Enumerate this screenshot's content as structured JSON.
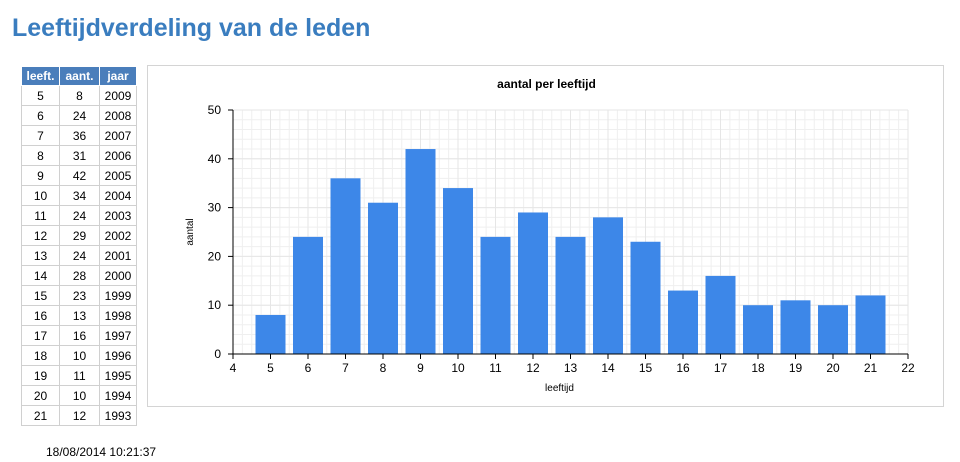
{
  "page": {
    "title": "Leeftijdverdeling van de leden",
    "timestamp": "18/08/2014 10:21:37"
  },
  "table": {
    "headers": [
      "leeft.",
      "aant.",
      "jaar"
    ],
    "rows": [
      [
        "5",
        "8",
        "2009"
      ],
      [
        "6",
        "24",
        "2008"
      ],
      [
        "7",
        "36",
        "2007"
      ],
      [
        "8",
        "31",
        "2006"
      ],
      [
        "9",
        "42",
        "2005"
      ],
      [
        "10",
        "34",
        "2004"
      ],
      [
        "11",
        "24",
        "2003"
      ],
      [
        "12",
        "29",
        "2002"
      ],
      [
        "13",
        "24",
        "2001"
      ],
      [
        "14",
        "28",
        "2000"
      ],
      [
        "15",
        "23",
        "1999"
      ],
      [
        "16",
        "13",
        "1998"
      ],
      [
        "17",
        "16",
        "1997"
      ],
      [
        "18",
        "10",
        "1996"
      ],
      [
        "19",
        "11",
        "1995"
      ],
      [
        "20",
        "10",
        "1994"
      ],
      [
        "21",
        "12",
        "1993"
      ]
    ]
  },
  "colors": {
    "title": "#3a7dbf",
    "table_header_bg": "#4a7ebb",
    "bar": "#3d87e8",
    "grid": "#e6e6e6"
  },
  "chart_data": {
    "type": "bar",
    "title": "aantal per leeftijd",
    "xlabel": "leeftijd",
    "ylabel": "aantal",
    "x": [
      5,
      6,
      7,
      8,
      9,
      10,
      11,
      12,
      13,
      14,
      15,
      16,
      17,
      18,
      19,
      20,
      21
    ],
    "values": [
      8,
      24,
      36,
      31,
      42,
      34,
      24,
      29,
      24,
      28,
      23,
      13,
      16,
      10,
      11,
      10,
      12
    ],
    "xlim": [
      4,
      22
    ],
    "ylim": [
      0,
      50
    ],
    "xticks": [
      4,
      5,
      6,
      7,
      8,
      9,
      10,
      11,
      12,
      13,
      14,
      15,
      16,
      17,
      18,
      19,
      20,
      21,
      22
    ],
    "yticks": [
      0,
      10,
      20,
      30,
      40,
      50
    ],
    "grid": true,
    "legend": "none"
  }
}
